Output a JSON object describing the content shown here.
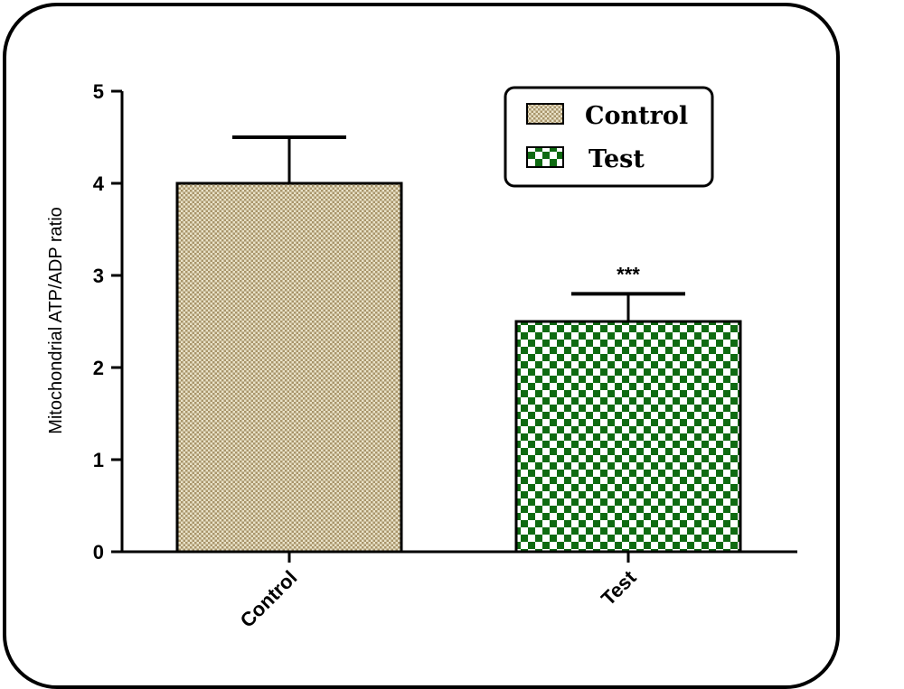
{
  "chart_data": {
    "type": "bar",
    "categories": [
      "Control",
      "Test"
    ],
    "series": [
      {
        "name": "Control",
        "values": [
          4.0,
          null
        ],
        "error": [
          0.5,
          null
        ],
        "color": "#c8b98f",
        "pattern": "fine-dots"
      },
      {
        "name": "Test",
        "values": [
          null,
          2.5
        ],
        "error": [
          null,
          0.3
        ],
        "color": "#0f6b12",
        "pattern": "checkerboard"
      }
    ],
    "values": [
      4.0,
      2.5
    ],
    "errors": [
      0.5,
      0.3
    ],
    "title": "",
    "xlabel": "",
    "ylabel": "Mitochondrial ATP/ADP ratio",
    "ylim": [
      0,
      5
    ],
    "yticks": [
      0,
      1,
      2,
      3,
      4,
      5
    ],
    "annotations": [
      {
        "category": "Test",
        "text": "***"
      }
    ],
    "legend": {
      "placement": "top-right",
      "entries": [
        "Control",
        "Test"
      ]
    },
    "grid": false
  }
}
